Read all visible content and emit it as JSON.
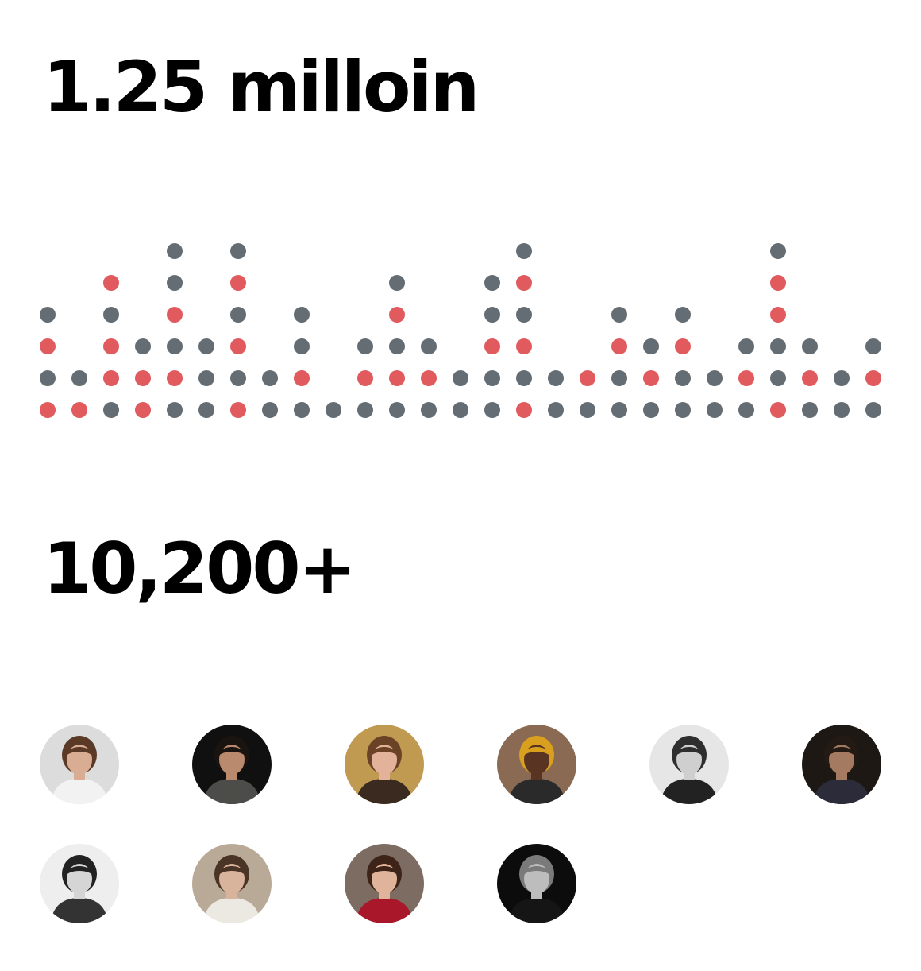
{
  "stats": {
    "views_value": "1.25 milloin",
    "users_value": "10,200+"
  },
  "colors": {
    "dot_neutral": "#636d73",
    "dot_highlight": "#e05a5e"
  },
  "dot_chart": {
    "columns": [
      "RNRN",
      "RN",
      "NRRNR",
      "RRN",
      "NRNRNN",
      "NNN",
      "RNRNRN",
      "NN",
      "NRNN",
      "N",
      "NRN",
      "NRNRN",
      "NRN",
      "NN",
      "NNRNN",
      "RNRNRN",
      "NN",
      "NR",
      "NNRN",
      "NRN",
      "NNRN",
      "NN",
      "NRN",
      "RNNRRN",
      "NRN",
      "NN",
      "NRN"
    ]
  },
  "avatars": [
    {
      "label": "woman in white lace blouse",
      "bg": "#dcdcdc",
      "skin": "#d9ad94",
      "hair": "#5a3a26",
      "shirt": "#f2f2f2"
    },
    {
      "label": "man with dark hair",
      "bg": "#101010",
      "skin": "#b98a6e",
      "hair": "#1a1410",
      "shirt": "#4c4c48"
    },
    {
      "label": "woman with long brown hair",
      "bg": "#c09a50",
      "skin": "#e2b39a",
      "hair": "#6a4326",
      "shirt": "#3a2a20"
    },
    {
      "label": "smiling woman with head wrap",
      "bg": "#8a6a52",
      "skin": "#5a3422",
      "hair": "#d9a020",
      "shirt": "#2a2a2a"
    },
    {
      "label": "man in black and white portrait",
      "bg": "#e6e6e6",
      "skin": "#cfcfcf",
      "hair": "#2e2e2e",
      "shirt": "#222222"
    },
    {
      "label": "man in suit",
      "bg": "#1e1814",
      "skin": "#a47a60",
      "hair": "#231a14",
      "shirt": "#2b2b3a"
    },
    {
      "label": "bearded man in striped shirt",
      "bg": "#eeeeee",
      "skin": "#d5d5d5",
      "hair": "#222222",
      "shirt": "#333333"
    },
    {
      "label": "woman with headphones",
      "bg": "#b9aa98",
      "skin": "#d9b49c",
      "hair": "#4a3426",
      "shirt": "#ece8e2"
    },
    {
      "label": "smiling woman in red top",
      "bg": "#7d6c62",
      "skin": "#e0b49a",
      "hair": "#3e2418",
      "shirt": "#a8182a"
    },
    {
      "label": "young man in black and white",
      "bg": "#0c0c0c",
      "skin": "#bdbdbd",
      "hair": "#7a7a7a",
      "shirt": "#151515"
    }
  ]
}
